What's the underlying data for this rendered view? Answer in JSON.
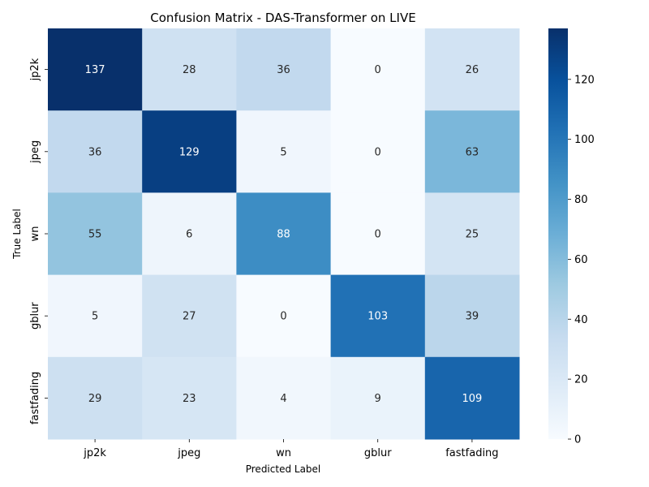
{
  "chart_data": {
    "type": "heatmap",
    "title": "Confusion Matrix - DAS-Transformer on LIVE",
    "xlabel": "Predicted Label",
    "ylabel": "True Label",
    "x_categories": [
      "jp2k",
      "jpeg",
      "wn",
      "gblur",
      "fastfading"
    ],
    "y_categories": [
      "jp2k",
      "jpeg",
      "wn",
      "gblur",
      "fastfading"
    ],
    "values": [
      [
        137,
        28,
        36,
        0,
        26
      ],
      [
        36,
        129,
        5,
        0,
        63
      ],
      [
        55,
        6,
        88,
        0,
        25
      ],
      [
        5,
        27,
        0,
        103,
        39
      ],
      [
        29,
        23,
        4,
        9,
        109
      ]
    ],
    "colorbar": {
      "min": 0,
      "max": 137,
      "ticks": [
        0,
        20,
        40,
        60,
        80,
        100,
        120
      ]
    },
    "colormap": "Blues",
    "grid": false
  }
}
